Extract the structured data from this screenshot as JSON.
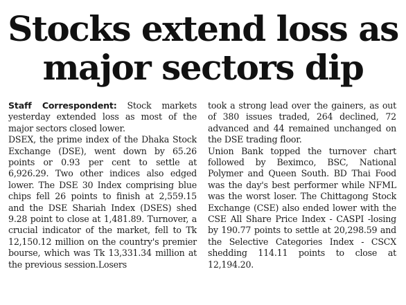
{
  "article": {
    "headline_line1": "Stocks extend loss as",
    "headline_line2": "major sectors dip",
    "byline": "Staff Correspondent:",
    "lead": " Stock markets yesterday extended loss as most of the major sectors closed lower.",
    "para1": "DSEX, the prime index of the Dhaka Stock Exchange (DSE), went down by 65.26 points or 0.93 per cent to settle at 6,926.29. Two other indices also edged lower. The DSE 30 Index comprising blue chips fell 26 points to finish at 2,559.15 and the DSE Shariah Index (DSES) shed 9.28 point to close at 1,481.89. Turnover, a crucial indicator of the market, fell to Tk 12,150.12 million on the country's premier bourse, which was Tk 13,331.34 million at the previous session.Losers",
    "para2": "took a strong lead over the gainers, as out of 380 issues traded, 264 declined, 72 advanced and 44 remained unchanged on the DSE trading floor.",
    "para3": "Union Bank topped the turnover chart followed by Beximco, BSC, National Polymer and Queen South. BD Thai Food was the day's best performer while NFML was the worst loser. The Chittagong Stock Exchange (CSE) also ended lower with the CSE All Share Price Index - CASPI -losing by 190.77 points to settle at 20,298.59 and the Selective Categories Index - CSCX shedding 114.11 points to close at 12,194.20."
  }
}
